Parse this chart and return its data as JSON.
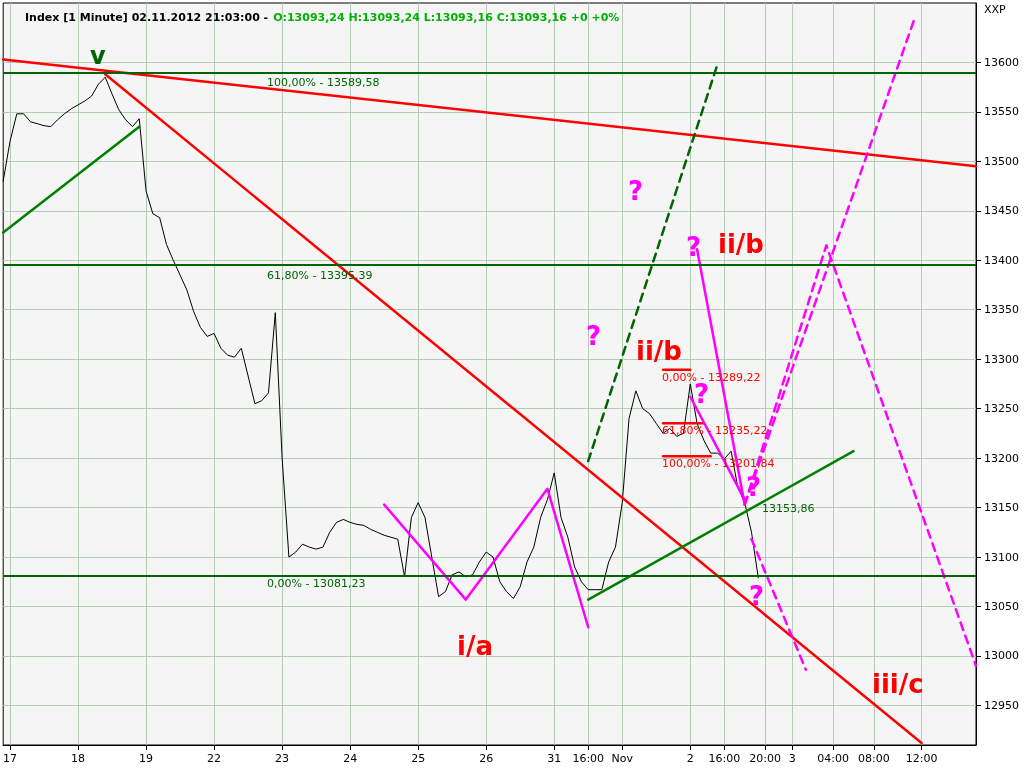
{
  "chart_data": {
    "type": "line",
    "title": "Index [1 Minute] 02.11.2012 21:03:00 -",
    "subtitle": "O:13093,24 H:13093,24 L:13093,16 C:13093,16 +0 +0%",
    "ylabel": "XXP",
    "categories": [
      null,
      "17",
      null,
      null,
      null,
      null,
      null,
      null,
      null,
      null,
      null,
      "18",
      null,
      null,
      null,
      null,
      null,
      null,
      null,
      null,
      null,
      "19",
      null,
      null,
      null,
      null,
      null,
      null,
      null,
      null,
      null,
      "22",
      null,
      null,
      null,
      null,
      null,
      null,
      null,
      null,
      null,
      "23",
      null,
      null,
      null,
      null,
      null,
      null,
      null,
      null,
      null,
      "24",
      null,
      null,
      null,
      null,
      null,
      null,
      null,
      null,
      null,
      "25",
      null,
      null,
      null,
      null,
      null,
      null,
      null,
      null,
      null,
      "26",
      null,
      null,
      null,
      null,
      null,
      null,
      null,
      null,
      null,
      "31",
      null,
      null,
      null,
      null,
      "16:00",
      null,
      null,
      null,
      null,
      "Nov",
      null,
      null,
      null,
      null,
      null,
      null,
      null,
      null,
      null,
      "2",
      null,
      null,
      null,
      null,
      "16:00",
      null,
      null,
      null,
      null,
      null,
      "20:00",
      null,
      null,
      null,
      "3",
      null,
      null,
      null,
      null,
      null,
      "04:00",
      null,
      null,
      null,
      null,
      null,
      "08:00",
      null,
      null,
      null,
      null,
      null,
      null,
      "12:00",
      null,
      null,
      null,
      null,
      null,
      null,
      null,
      null
    ],
    "ylim": [
      12910,
      13660
    ],
    "yticks": [
      12950,
      13000,
      13050,
      13100,
      13150,
      13200,
      13250,
      13300,
      13350,
      13400,
      13450,
      13500,
      13550,
      13600
    ],
    "grid": true,
    "marker": "none",
    "ref_lines": [
      {
        "axis": "y",
        "value": 13589.58,
        "color": "#006400"
      },
      {
        "axis": "y",
        "value": 13395.39,
        "color": "#006400"
      },
      {
        "axis": "y",
        "value": 13081.23,
        "color": "#006400"
      }
    ],
    "series": [
      {
        "color": "#000000",
        "line_style": "solid",
        "values": [
          13480,
          13520,
          13548,
          13548,
          13540,
          13538,
          13536,
          13535,
          13542,
          13548,
          13553,
          13557,
          13561,
          13566,
          13578,
          13585,
          13568,
          13552,
          13542,
          13535,
          13543,
          13470,
          13447,
          13443,
          13416,
          13400,
          13385,
          13370,
          13348,
          13332,
          13323,
          13326,
          13311,
          13304,
          13302,
          13311,
          13283,
          13255,
          13258,
          13266,
          13347,
          13200,
          13100,
          13105,
          13113,
          13110,
          13108,
          13110,
          13125,
          13135,
          13138,
          13135,
          13133,
          13132,
          13128,
          13125,
          13122,
          13120,
          13118,
          13080,
          13140,
          13155,
          13140,
          13100,
          13060,
          13065,
          13082,
          13085,
          13080,
          13082,
          13095,
          13105,
          13100,
          13075,
          13065,
          13058,
          13070,
          13095,
          13110,
          13140,
          13158,
          13185,
          13140,
          13120,
          13090,
          13075,
          13067,
          13067,
          13067,
          13095,
          13110,
          13155,
          13240,
          13268,
          13250,
          13245,
          13235,
          13225,
          13230,
          13222,
          13225,
          13275,
          13235,
          13218,
          13205,
          13205,
          13199,
          13207,
          13170,
          13155,
          13125,
          13079,
          null,
          null,
          null,
          null,
          null,
          null,
          null,
          null,
          null,
          null,
          null,
          null,
          null,
          null,
          null,
          null,
          null,
          null,
          null,
          null,
          null,
          null,
          null,
          null,
          null,
          null,
          null,
          null,
          null,
          null,
          null,
          null
        ]
      },
      {
        "color": "#ff0000",
        "line_style": "solid",
        "values": [
          13603,
          null,
          null,
          null,
          null,
          null,
          null,
          null,
          null,
          null,
          null,
          null,
          null,
          null,
          null,
          null,
          null,
          null,
          null,
          null,
          null,
          null,
          null,
          null,
          null,
          null,
          null,
          null,
          null,
          null,
          null,
          null,
          null,
          null,
          null,
          null,
          null,
          null,
          null,
          null,
          null,
          null,
          null,
          null,
          null,
          null,
          null,
          null,
          null,
          null,
          null,
          null,
          null,
          null,
          null,
          null,
          null,
          null,
          null,
          null,
          null,
          null,
          null,
          null,
          null,
          null,
          null,
          null,
          null,
          null,
          null,
          null,
          null,
          null,
          null,
          null,
          null,
          null,
          null,
          null,
          null,
          null,
          null,
          null,
          null,
          null,
          null,
          null,
          null,
          null,
          null,
          null,
          null,
          null,
          null,
          null,
          null,
          null,
          null,
          null,
          null,
          null,
          null,
          null,
          null,
          null,
          null,
          null,
          null,
          null,
          null,
          null,
          null,
          null,
          null,
          null,
          null,
          null,
          null,
          null,
          null,
          null,
          null,
          null,
          null,
          null,
          null,
          null,
          null,
          null,
          null,
          null,
          null,
          null,
          null,
          null,
          null,
          null,
          null,
          null,
          null,
          null,
          null,
          13495
        ]
      },
      {
        "color": "#ff0000",
        "line_style": "solid",
        "values": [
          null,
          null,
          null,
          null,
          null,
          null,
          null,
          null,
          null,
          null,
          null,
          null,
          null,
          null,
          null,
          13588,
          null,
          null,
          null,
          null,
          null,
          null,
          null,
          null,
          null,
          null,
          null,
          null,
          null,
          null,
          null,
          null,
          null,
          null,
          null,
          null,
          null,
          null,
          null,
          null,
          null,
          null,
          null,
          null,
          null,
          null,
          null,
          null,
          null,
          null,
          null,
          null,
          null,
          null,
          null,
          null,
          null,
          null,
          null,
          null,
          null,
          null,
          null,
          null,
          null,
          null,
          null,
          null,
          null,
          null,
          null,
          null,
          null,
          null,
          null,
          null,
          null,
          null,
          null,
          null,
          null,
          null,
          null,
          null,
          null,
          null,
          null,
          null,
          null,
          null,
          null,
          null,
          null,
          null,
          null,
          null,
          null,
          null,
          null,
          null,
          null,
          null,
          null,
          null,
          null,
          null,
          null,
          null,
          null,
          null,
          null,
          null,
          null,
          null,
          null,
          null,
          null,
          null,
          null,
          null,
          null,
          null,
          null,
          null,
          null,
          null,
          null,
          null,
          null,
          null,
          null,
          null,
          null,
          null,
          null,
          12912,
          null,
          null,
          null,
          null,
          null,
          null,
          null,
          null
        ]
      },
      {
        "color": "#008000",
        "line_style": "solid",
        "values": [
          13428,
          null,
          null,
          null,
          null,
          null,
          null,
          null,
          null,
          null,
          null,
          null,
          null,
          null,
          null,
          null,
          null,
          null,
          null,
          null,
          13535,
          null,
          null,
          null,
          null,
          null,
          null,
          null,
          null,
          null,
          null,
          null,
          null,
          null,
          null,
          null,
          null,
          null,
          null,
          null,
          null,
          null,
          null,
          null,
          null,
          null,
          null,
          null,
          null,
          null,
          null,
          null,
          null,
          null,
          null,
          null,
          null,
          null,
          null,
          null,
          null,
          null,
          null,
          null,
          null,
          null,
          null,
          null,
          null,
          null,
          null,
          null,
          null,
          null,
          null,
          null,
          null,
          null,
          null,
          null,
          null,
          null,
          null,
          null,
          null,
          null,
          null,
          null,
          null,
          null,
          null,
          null,
          null,
          null,
          null,
          null,
          null,
          null,
          null,
          null,
          null,
          null,
          null,
          null,
          null,
          null,
          null,
          null,
          null,
          null,
          null,
          null,
          null,
          null,
          null,
          null,
          null,
          null,
          null,
          null,
          null,
          null,
          null,
          null,
          null,
          null,
          null,
          null,
          null,
          null,
          null,
          null,
          null,
          null,
          null,
          null,
          null,
          null,
          null,
          null,
          null,
          null,
          null,
          null
        ]
      },
      {
        "color": "#008000",
        "line_style": "solid",
        "values": [
          null,
          null,
          null,
          null,
          null,
          null,
          null,
          null,
          null,
          null,
          null,
          null,
          null,
          null,
          null,
          null,
          null,
          null,
          null,
          null,
          null,
          null,
          null,
          null,
          null,
          null,
          null,
          null,
          null,
          null,
          null,
          null,
          null,
          null,
          null,
          null,
          null,
          null,
          null,
          null,
          null,
          null,
          null,
          null,
          null,
          null,
          null,
          null,
          null,
          null,
          null,
          null,
          null,
          null,
          null,
          null,
          null,
          null,
          null,
          null,
          null,
          null,
          null,
          null,
          null,
          null,
          null,
          null,
          null,
          null,
          null,
          null,
          null,
          null,
          null,
          null,
          null,
          null,
          null,
          null,
          null,
          null,
          null,
          null,
          null,
          null,
          13057,
          null,
          null,
          null,
          null,
          null,
          null,
          null,
          null,
          null,
          null,
          null,
          null,
          null,
          null,
          null,
          null,
          null,
          null,
          null,
          null,
          null,
          null,
          null,
          null,
          null,
          null,
          null,
          null,
          null,
          null,
          null,
          null,
          null,
          null,
          null,
          null,
          null,
          null,
          13207,
          null,
          null,
          null,
          null,
          null,
          null,
          null,
          null,
          null,
          null,
          null,
          null,
          null,
          null,
          null,
          null,
          null,
          null
        ]
      },
      {
        "color": "#ff0000",
        "line_style": "solid",
        "values": [
          null,
          null,
          null,
          null,
          null,
          null,
          null,
          null,
          null,
          null,
          null,
          null,
          null,
          null,
          null,
          null,
          null,
          null,
          null,
          null,
          null,
          null,
          null,
          null,
          null,
          null,
          null,
          null,
          null,
          null,
          null,
          null,
          null,
          null,
          null,
          null,
          null,
          null,
          null,
          null,
          null,
          null,
          null,
          null,
          null,
          null,
          null,
          null,
          null,
          null,
          null,
          null,
          null,
          null,
          null,
          null,
          null,
          null,
          null,
          null,
          null,
          null,
          null,
          null,
          null,
          null,
          null,
          null,
          null,
          null,
          null,
          null,
          null,
          null,
          null,
          null,
          null,
          null,
          null,
          null,
          null,
          null,
          null,
          null,
          null,
          null,
          null,
          null,
          null,
          null,
          null,
          null,
          null,
          null,
          null,
          null,
          null,
          13289.22,
          null,
          null,
          null,
          13289.22,
          null,
          null,
          null,
          null,
          null,
          null,
          null,
          null,
          null,
          null,
          null,
          null,
          null,
          null,
          null,
          null,
          null,
          null,
          null,
          null,
          null,
          null,
          null,
          null,
          null,
          null,
          null,
          null,
          null,
          null,
          null,
          null,
          null,
          null,
          null,
          null,
          null,
          null,
          null,
          null,
          null,
          null
        ]
      },
      {
        "color": "#ff0000",
        "line_style": "solid",
        "values": [
          null,
          null,
          null,
          null,
          null,
          null,
          null,
          null,
          null,
          null,
          null,
          null,
          null,
          null,
          null,
          null,
          null,
          null,
          null,
          null,
          null,
          null,
          null,
          null,
          null,
          null,
          null,
          null,
          null,
          null,
          null,
          null,
          null,
          null,
          null,
          null,
          null,
          null,
          null,
          null,
          null,
          null,
          null,
          null,
          null,
          null,
          null,
          null,
          null,
          null,
          null,
          null,
          null,
          null,
          null,
          null,
          null,
          null,
          null,
          null,
          null,
          null,
          null,
          null,
          null,
          null,
          null,
          null,
          null,
          null,
          null,
          null,
          null,
          null,
          null,
          null,
          null,
          null,
          null,
          null,
          null,
          null,
          null,
          null,
          null,
          null,
          null,
          null,
          null,
          null,
          null,
          null,
          null,
          null,
          null,
          null,
          null,
          13235.22,
          null,
          null,
          null,
          null,
          null,
          13235.22,
          null,
          null,
          null,
          null,
          null,
          null,
          null,
          null,
          null,
          null,
          null,
          null,
          null,
          null,
          null,
          null,
          null,
          null,
          null,
          null,
          null,
          null,
          null,
          null,
          null,
          null,
          null,
          null,
          null,
          null,
          null,
          null,
          null,
          null,
          null,
          null,
          null,
          null,
          null,
          null
        ]
      },
      {
        "color": "#ff0000",
        "line_style": "solid",
        "values": [
          null,
          null,
          null,
          null,
          null,
          null,
          null,
          null,
          null,
          null,
          null,
          null,
          null,
          null,
          null,
          null,
          null,
          null,
          null,
          null,
          null,
          null,
          null,
          null,
          null,
          null,
          null,
          null,
          null,
          null,
          null,
          null,
          null,
          null,
          null,
          null,
          null,
          null,
          null,
          null,
          null,
          null,
          null,
          null,
          null,
          null,
          null,
          null,
          null,
          null,
          null,
          null,
          null,
          null,
          null,
          null,
          null,
          null,
          null,
          null,
          null,
          null,
          null,
          null,
          null,
          null,
          null,
          null,
          null,
          null,
          null,
          null,
          null,
          null,
          null,
          null,
          null,
          null,
          null,
          null,
          null,
          null,
          null,
          null,
          null,
          null,
          null,
          null,
          null,
          null,
          null,
          null,
          null,
          null,
          null,
          null,
          null,
          13201.84,
          null,
          null,
          null,
          null,
          null,
          null,
          13201.84,
          null,
          null,
          null,
          null,
          null,
          null,
          null,
          null,
          null,
          null,
          null,
          null,
          null,
          null,
          null,
          null,
          null,
          null,
          null,
          null,
          null,
          null,
          null,
          null,
          null,
          null,
          null,
          null,
          null,
          null,
          null,
          null,
          null,
          null,
          null,
          null,
          null,
          null,
          null
        ]
      },
      {
        "color": "#006400",
        "line_style": "dashed",
        "values": [
          null,
          null,
          null,
          null,
          null,
          null,
          null,
          null,
          null,
          null,
          null,
          null,
          null,
          null,
          null,
          null,
          null,
          null,
          null,
          null,
          null,
          null,
          null,
          null,
          null,
          null,
          null,
          null,
          null,
          null,
          null,
          null,
          null,
          null,
          null,
          null,
          null,
          null,
          null,
          null,
          null,
          null,
          null,
          null,
          null,
          null,
          null,
          null,
          null,
          null,
          null,
          null,
          null,
          null,
          null,
          null,
          null,
          null,
          null,
          null,
          null,
          null,
          null,
          null,
          null,
          null,
          null,
          null,
          null,
          null,
          null,
          null,
          null,
          null,
          null,
          null,
          null,
          null,
          null,
          null,
          null,
          null,
          null,
          null,
          null,
          null,
          13197,
          null,
          null,
          null,
          null,
          null,
          null,
          null,
          null,
          null,
          null,
          null,
          null,
          null,
          null,
          null,
          null,
          null,
          null,
          13598,
          null,
          null,
          null,
          null,
          null,
          null,
          null,
          null,
          null,
          null,
          null,
          null,
          null,
          null,
          null,
          null,
          null,
          null,
          null,
          null,
          null,
          null,
          null,
          null,
          null,
          null,
          null,
          null,
          null,
          null,
          null,
          null,
          null,
          null,
          null,
          null,
          null,
          null
        ]
      },
      {
        "color": "#ff00ff",
        "line_style": "solid",
        "values": [
          null,
          null,
          null,
          null,
          null,
          null,
          null,
          null,
          null,
          null,
          null,
          null,
          null,
          null,
          null,
          null,
          null,
          null,
          null,
          null,
          null,
          null,
          null,
          null,
          null,
          null,
          null,
          null,
          null,
          null,
          null,
          null,
          null,
          null,
          null,
          null,
          null,
          null,
          null,
          null,
          null,
          null,
          null,
          null,
          null,
          null,
          null,
          null,
          null,
          null,
          null,
          null,
          null,
          null,
          null,
          null,
          13153,
          null,
          null,
          null,
          null,
          null,
          null,
          null,
          null,
          null,
          null,
          null,
          13057,
          null,
          null,
          null,
          null,
          null,
          null,
          null,
          null,
          null,
          null,
          null,
          13169,
          null,
          null,
          null,
          null,
          null,
          13029,
          null,
          null,
          null,
          null,
          null,
          null,
          null,
          null,
          null,
          null,
          null,
          null,
          null,
          null,
          null,
          null,
          null,
          null,
          null,
          null,
          null,
          null,
          null,
          null,
          null,
          null,
          null,
          null,
          null,
          null,
          null,
          null,
          null,
          null,
          null,
          null,
          null,
          null,
          null,
          null,
          null,
          null,
          null,
          null,
          null,
          null,
          null,
          null,
          null,
          null,
          null,
          null,
          null,
          null,
          null,
          null,
          null
        ]
      },
      {
        "color": "#ff00ff",
        "line_style": "solid",
        "values": [
          null,
          null,
          null,
          null,
          null,
          null,
          null,
          null,
          null,
          null,
          null,
          null,
          null,
          null,
          null,
          null,
          null,
          null,
          null,
          null,
          null,
          null,
          null,
          null,
          null,
          null,
          null,
          null,
          null,
          null,
          null,
          null,
          null,
          null,
          null,
          null,
          null,
          null,
          null,
          null,
          null,
          null,
          null,
          null,
          null,
          null,
          null,
          null,
          null,
          null,
          null,
          null,
          null,
          null,
          null,
          null,
          null,
          null,
          null,
          null,
          null,
          null,
          null,
          null,
          null,
          null,
          null,
          null,
          null,
          null,
          null,
          null,
          null,
          null,
          null,
          null,
          null,
          null,
          null,
          null,
          null,
          null,
          null,
          null,
          null,
          null,
          null,
          null,
          null,
          null,
          null,
          null,
          null,
          null,
          null,
          null,
          null,
          null,
          null,
          null,
          null,
          null,
          13411,
          null,
          null,
          null,
          null,
          null,
          null,
          13153,
          null,
          null,
          null,
          null,
          null,
          null,
          null,
          null,
          null,
          null,
          null,
          null,
          null,
          null,
          null,
          null,
          null,
          null,
          null,
          null,
          null,
          null,
          null,
          null,
          null,
          null,
          null,
          null,
          null,
          null,
          null,
          null,
          null,
          null
        ]
      },
      {
        "color": "#ff00ff",
        "line_style": "solid",
        "values": [
          null,
          null,
          null,
          null,
          null,
          null,
          null,
          null,
          null,
          null,
          null,
          null,
          null,
          null,
          null,
          null,
          null,
          null,
          null,
          null,
          null,
          null,
          null,
          null,
          null,
          null,
          null,
          null,
          null,
          null,
          null,
          null,
          null,
          null,
          null,
          null,
          null,
          null,
          null,
          null,
          null,
          null,
          null,
          null,
          null,
          null,
          null,
          null,
          null,
          null,
          null,
          null,
          null,
          null,
          null,
          null,
          null,
          null,
          null,
          null,
          null,
          null,
          null,
          null,
          null,
          null,
          null,
          null,
          null,
          null,
          null,
          null,
          null,
          null,
          null,
          null,
          null,
          null,
          null,
          null,
          null,
          null,
          null,
          null,
          null,
          null,
          null,
          null,
          null,
          null,
          null,
          null,
          null,
          null,
          null,
          null,
          null,
          null,
          null,
          null,
          null,
          13262,
          null,
          null,
          null,
          null,
          null,
          null,
          null,
          13158,
          null,
          null,
          null,
          null,
          null,
          null,
          null,
          null,
          null,
          null,
          null,
          null,
          null,
          null,
          null,
          null,
          null,
          null,
          null,
          null,
          null,
          null,
          null,
          null,
          null,
          null,
          null,
          null,
          null,
          null,
          null,
          null,
          null,
          null
        ]
      },
      {
        "color": "#ff00ff",
        "line_style": "dashed",
        "values": [
          null,
          null,
          null,
          null,
          null,
          null,
          null,
          null,
          null,
          null,
          null,
          null,
          null,
          null,
          null,
          null,
          null,
          null,
          null,
          null,
          null,
          null,
          null,
          null,
          null,
          null,
          null,
          null,
          null,
          null,
          null,
          null,
          null,
          null,
          null,
          null,
          null,
          null,
          null,
          null,
          null,
          null,
          null,
          null,
          null,
          null,
          null,
          null,
          null,
          null,
          null,
          null,
          null,
          null,
          null,
          null,
          null,
          null,
          null,
          null,
          null,
          null,
          null,
          null,
          null,
          null,
          null,
          null,
          null,
          null,
          null,
          null,
          null,
          null,
          null,
          null,
          null,
          null,
          null,
          null,
          null,
          null,
          null,
          null,
          null,
          null,
          null,
          null,
          null,
          null,
          null,
          null,
          null,
          null,
          null,
          null,
          null,
          null,
          null,
          null,
          null,
          null,
          null,
          null,
          null,
          null,
          null,
          null,
          null,
          13153,
          null,
          null,
          null,
          null,
          null,
          null,
          null,
          null,
          null,
          null,
          null,
          13415,
          null,
          null,
          null,
          null,
          null,
          null,
          null,
          null,
          null,
          null,
          null,
          null,
          null,
          null,
          null,
          null,
          null,
          null,
          null,
          null,
          null,
          12990
        ]
      },
      {
        "color": "#ff00ff",
        "line_style": "dashed",
        "values": [
          null,
          null,
          null,
          null,
          null,
          null,
          null,
          null,
          null,
          null,
          null,
          null,
          null,
          null,
          null,
          null,
          null,
          null,
          null,
          null,
          null,
          null,
          null,
          null,
          null,
          null,
          null,
          null,
          null,
          null,
          null,
          null,
          null,
          null,
          null,
          null,
          null,
          null,
          null,
          null,
          null,
          null,
          null,
          null,
          null,
          null,
          null,
          null,
          null,
          null,
          null,
          null,
          null,
          null,
          null,
          null,
          null,
          null,
          null,
          null,
          null,
          null,
          null,
          null,
          null,
          null,
          null,
          null,
          null,
          null,
          null,
          null,
          null,
          null,
          null,
          null,
          null,
          null,
          null,
          null,
          null,
          null,
          null,
          null,
          null,
          null,
          null,
          null,
          null,
          null,
          null,
          null,
          null,
          null,
          null,
          null,
          null,
          null,
          null,
          null,
          null,
          null,
          null,
          null,
          null,
          null,
          null,
          null,
          null,
          13153,
          null,
          null,
          null,
          null,
          null,
          null,
          null,
          null,
          null,
          null,
          null,
          null,
          null,
          null,
          null,
          null,
          null,
          null,
          null,
          null,
          null,
          null,
          null,
          null,
          13645,
          null,
          null,
          null,
          null,
          null,
          null,
          null,
          null,
          null
        ]
      },
      {
        "color": "#ff00ff",
        "line_style": "dashed",
        "values": [
          null,
          null,
          null,
          null,
          null,
          null,
          null,
          null,
          null,
          null,
          null,
          null,
          null,
          null,
          null,
          null,
          null,
          null,
          null,
          null,
          null,
          null,
          null,
          null,
          null,
          null,
          null,
          null,
          null,
          null,
          null,
          null,
          null,
          null,
          null,
          null,
          null,
          null,
          null,
          null,
          null,
          null,
          null,
          null,
          null,
          null,
          null,
          null,
          null,
          null,
          null,
          null,
          null,
          null,
          null,
          null,
          null,
          null,
          null,
          null,
          null,
          null,
          null,
          null,
          null,
          null,
          null,
          null,
          null,
          null,
          null,
          null,
          null,
          null,
          null,
          null,
          null,
          null,
          null,
          null,
          null,
          null,
          null,
          null,
          null,
          null,
          null,
          null,
          null,
          null,
          null,
          null,
          null,
          null,
          null,
          null,
          null,
          null,
          null,
          null,
          null,
          null,
          null,
          null,
          null,
          null,
          null,
          null,
          null,
          null,
          13118,
          null,
          null,
          null,
          null,
          null,
          null,
          null,
          12986,
          null,
          null,
          null,
          null,
          null,
          null,
          null,
          null,
          null,
          null,
          null,
          null,
          null,
          null,
          null,
          null,
          null,
          null,
          null,
          null,
          null,
          null,
          null,
          null,
          null
        ]
      }
    ],
    "annotations": [
      "100,00% - 13589,58",
      "61,80% - 13395,39",
      "0,00% - 13081,23",
      "0,00% - 13289,22",
      "61,80% - 13235,22",
      "100,00% - 13201,84",
      "13153,86",
      "v",
      "i/a",
      "ii/b",
      "ii/b",
      "iii/c",
      "?",
      "?",
      "?",
      "?",
      "?",
      "?"
    ]
  }
}
